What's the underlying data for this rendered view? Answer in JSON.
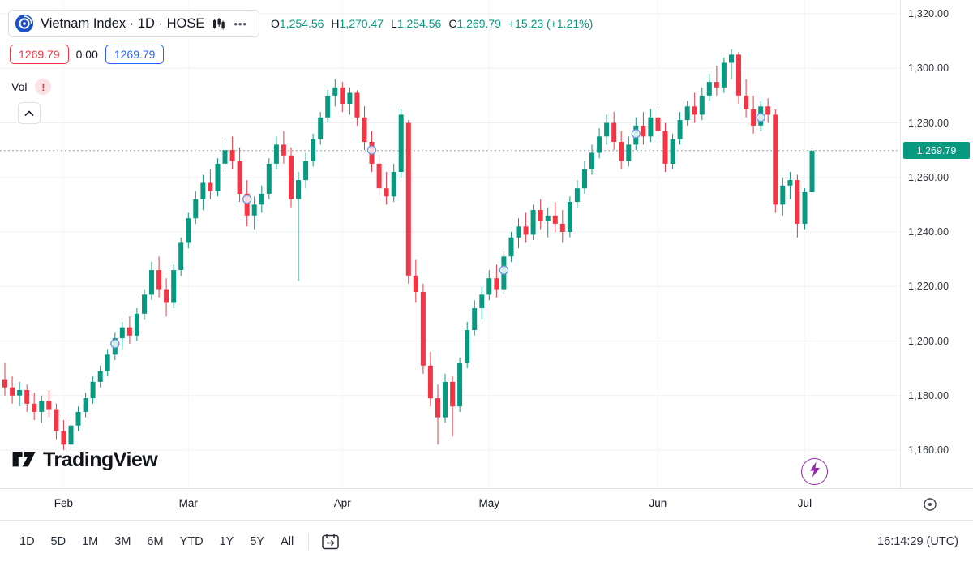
{
  "header": {
    "symbol_title": "Vietnam Index · 1D · HOSE",
    "ohlc": {
      "o_label": "O",
      "o": "1,254.56",
      "h_label": "H",
      "h": "1,270.47",
      "l_label": "L",
      "l": "1,254.56",
      "c_label": "C",
      "c": "1,269.79",
      "change": "+15.23 (+1.21%)"
    },
    "sell_price": "1269.79",
    "spread": "0.00",
    "buy_price": "1269.79",
    "vol_label": "Vol"
  },
  "icons": {
    "more": "•••",
    "alert": "!"
  },
  "watermark": "TradingView",
  "colors": {
    "up": "#089981",
    "down": "#f23645",
    "badge": "#089981",
    "sell": "#f23645",
    "buy": "#2962ff",
    "lightning": "#9c27b0"
  },
  "price_axis": {
    "labels": [
      "1,320.00",
      "1,300.00",
      "1,280.00",
      "1,260.00",
      "1,240.00",
      "1,220.00",
      "1,200.00",
      "1,180.00",
      "1,160.00"
    ],
    "current_price": "1,269.79"
  },
  "toolbar": {
    "ranges": [
      "1D",
      "5D",
      "1M",
      "3M",
      "6M",
      "YTD",
      "1Y",
      "5Y",
      "All"
    ],
    "clock": "16:14:29 (UTC)"
  },
  "chart_data": {
    "type": "candlestick",
    "title": "Vietnam Index · 1D · HOSE",
    "symbol": "Vietnam Index",
    "interval": "1D",
    "exchange": "HOSE",
    "last": 1269.79,
    "change": 15.23,
    "change_pct": 1.21,
    "today": {
      "open": 1254.56,
      "high": 1270.47,
      "low": 1254.56,
      "close": 1269.79
    },
    "y_ticks": [
      1320,
      1300,
      1280,
      1260,
      1240,
      1220,
      1200,
      1180,
      1160
    ],
    "ylim": [
      1155,
      1322
    ],
    "grid": true,
    "up_color": "#089981",
    "down_color": "#f23645",
    "x_axis_months": [
      {
        "label": "Feb",
        "index": 8
      },
      {
        "label": "Mar",
        "index": 25
      },
      {
        "label": "Apr",
        "index": 46
      },
      {
        "label": "May",
        "index": 66
      },
      {
        "label": "Jun",
        "index": 89
      },
      {
        "label": "Jul",
        "index": 109
      }
    ],
    "event_markers": [
      {
        "index": 15,
        "price": 1199
      },
      {
        "index": 33,
        "price": 1252
      },
      {
        "index": 50,
        "price": 1270
      },
      {
        "index": 68,
        "price": 1226
      },
      {
        "index": 86,
        "price": 1276
      },
      {
        "index": 103,
        "price": 1282
      }
    ],
    "candles": [
      [
        1186,
        1192,
        1180,
        1183
      ],
      [
        1183,
        1187,
        1177,
        1180
      ],
      [
        1180,
        1185,
        1176,
        1182
      ],
      [
        1182,
        1184,
        1174,
        1177
      ],
      [
        1177,
        1181,
        1171,
        1174
      ],
      [
        1174,
        1180,
        1170,
        1178
      ],
      [
        1178,
        1182,
        1172,
        1175
      ],
      [
        1175,
        1177,
        1164,
        1167
      ],
      [
        1167,
        1171,
        1160,
        1162
      ],
      [
        1162,
        1171,
        1160,
        1169
      ],
      [
        1169,
        1176,
        1167,
        1174
      ],
      [
        1174,
        1181,
        1172,
        1179
      ],
      [
        1179,
        1187,
        1177,
        1185
      ],
      [
        1185,
        1191,
        1183,
        1189
      ],
      [
        1189,
        1197,
        1187,
        1195
      ],
      [
        1195,
        1203,
        1193,
        1201
      ],
      [
        1201,
        1207,
        1197,
        1205
      ],
      [
        1205,
        1209,
        1199,
        1202
      ],
      [
        1202,
        1212,
        1200,
        1210
      ],
      [
        1210,
        1219,
        1208,
        1217
      ],
      [
        1217,
        1229,
        1215,
        1226
      ],
      [
        1226,
        1231,
        1216,
        1219
      ],
      [
        1219,
        1223,
        1209,
        1214
      ],
      [
        1214,
        1228,
        1212,
        1226
      ],
      [
        1226,
        1238,
        1224,
        1236
      ],
      [
        1236,
        1247,
        1234,
        1245
      ],
      [
        1245,
        1255,
        1243,
        1252
      ],
      [
        1252,
        1261,
        1248,
        1258
      ],
      [
        1258,
        1263,
        1252,
        1255
      ],
      [
        1255,
        1267,
        1253,
        1265
      ],
      [
        1265,
        1273,
        1262,
        1270
      ],
      [
        1270,
        1275,
        1263,
        1266
      ],
      [
        1266,
        1271,
        1251,
        1254
      ],
      [
        1254,
        1259,
        1242,
        1246
      ],
      [
        1246,
        1253,
        1241,
        1250
      ],
      [
        1250,
        1257,
        1247,
        1254
      ],
      [
        1254,
        1267,
        1252,
        1265
      ],
      [
        1265,
        1275,
        1263,
        1272
      ],
      [
        1272,
        1277,
        1265,
        1268
      ],
      [
        1268,
        1271,
        1249,
        1252
      ],
      [
        1252,
        1262,
        1222,
        1259
      ],
      [
        1259,
        1269,
        1256,
        1266
      ],
      [
        1266,
        1276,
        1264,
        1274
      ],
      [
        1274,
        1284,
        1272,
        1282
      ],
      [
        1282,
        1292,
        1280,
        1290
      ],
      [
        1290,
        1296,
        1286,
        1293
      ],
      [
        1293,
        1295,
        1284,
        1287
      ],
      [
        1287,
        1293,
        1283,
        1291
      ],
      [
        1291,
        1292,
        1279,
        1282
      ],
      [
        1282,
        1286,
        1270,
        1273
      ],
      [
        1273,
        1277,
        1262,
        1265
      ],
      [
        1265,
        1268,
        1253,
        1256
      ],
      [
        1256,
        1262,
        1250,
        1253
      ],
      [
        1253,
        1265,
        1251,
        1262
      ],
      [
        1262,
        1285,
        1260,
        1283
      ],
      [
        1280,
        1281,
        1221,
        1224
      ],
      [
        1224,
        1230,
        1214,
        1218
      ],
      [
        1218,
        1221,
        1188,
        1191
      ],
      [
        1191,
        1196,
        1176,
        1179
      ],
      [
        1179,
        1184,
        1162,
        1172
      ],
      [
        1172,
        1188,
        1170,
        1185
      ],
      [
        1185,
        1187,
        1165,
        1176
      ],
      [
        1176,
        1194,
        1174,
        1192
      ],
      [
        1192,
        1207,
        1190,
        1204
      ],
      [
        1204,
        1215,
        1202,
        1212
      ],
      [
        1212,
        1220,
        1208,
        1217
      ],
      [
        1217,
        1226,
        1215,
        1223
      ],
      [
        1223,
        1228,
        1216,
        1219
      ],
      [
        1219,
        1234,
        1217,
        1231
      ],
      [
        1231,
        1240,
        1229,
        1238
      ],
      [
        1238,
        1245,
        1234,
        1242
      ],
      [
        1242,
        1247,
        1236,
        1239
      ],
      [
        1239,
        1250,
        1237,
        1248
      ],
      [
        1248,
        1252,
        1241,
        1244
      ],
      [
        1244,
        1249,
        1238,
        1246
      ],
      [
        1246,
        1251,
        1240,
        1243
      ],
      [
        1243,
        1248,
        1236,
        1240
      ],
      [
        1240,
        1253,
        1238,
        1251
      ],
      [
        1251,
        1259,
        1249,
        1256
      ],
      [
        1256,
        1266,
        1254,
        1263
      ],
      [
        1263,
        1272,
        1261,
        1269
      ],
      [
        1269,
        1278,
        1267,
        1275
      ],
      [
        1275,
        1283,
        1272,
        1280
      ],
      [
        1280,
        1284,
        1270,
        1273
      ],
      [
        1273,
        1277,
        1263,
        1266
      ],
      [
        1266,
        1275,
        1264,
        1272
      ],
      [
        1272,
        1282,
        1270,
        1279
      ],
      [
        1279,
        1284,
        1272,
        1275
      ],
      [
        1275,
        1285,
        1273,
        1282
      ],
      [
        1282,
        1286,
        1274,
        1277
      ],
      [
        1277,
        1280,
        1262,
        1265
      ],
      [
        1265,
        1276,
        1263,
        1274
      ],
      [
        1274,
        1284,
        1272,
        1281
      ],
      [
        1281,
        1288,
        1279,
        1286
      ],
      [
        1286,
        1291,
        1280,
        1283
      ],
      [
        1283,
        1293,
        1281,
        1290
      ],
      [
        1290,
        1298,
        1288,
        1295
      ],
      [
        1295,
        1301,
        1290,
        1293
      ],
      [
        1293,
        1304,
        1291,
        1302
      ],
      [
        1302,
        1307,
        1296,
        1305
      ],
      [
        1305,
        1306,
        1287,
        1290
      ],
      [
        1290,
        1296,
        1282,
        1285
      ],
      [
        1285,
        1290,
        1276,
        1279
      ],
      [
        1279,
        1288,
        1277,
        1286
      ],
      [
        1286,
        1289,
        1280,
        1283
      ],
      [
        1283,
        1285,
        1247,
        1250
      ],
      [
        1250,
        1260,
        1246,
        1257
      ],
      [
        1257,
        1262,
        1252,
        1259
      ],
      [
        1259,
        1261,
        1238,
        1243
      ],
      [
        1243,
        1256,
        1241,
        1254.56
      ],
      [
        1254.56,
        1270.47,
        1254.56,
        1269.79
      ]
    ]
  }
}
